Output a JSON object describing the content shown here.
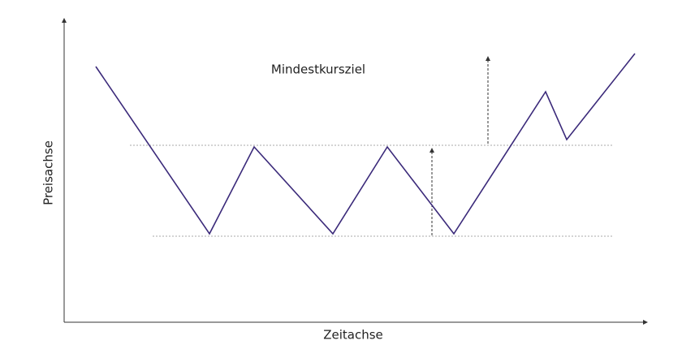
{
  "annotation": "Mindestkursziel",
  "x_axis_label": "Zeitachse",
  "y_axis_label": "Preisachse"
}
